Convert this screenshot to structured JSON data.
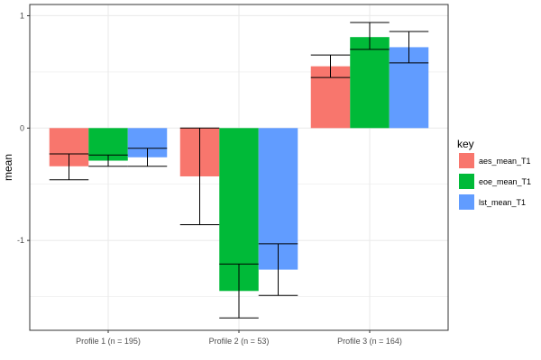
{
  "chart_data": {
    "type": "bar",
    "categories": [
      "Profile 1 (n = 195)",
      "Profile 2 (n = 53)",
      "Profile 3 (n = 164)"
    ],
    "series": [
      {
        "name": "aes_mean_T1",
        "color": "#F8766D",
        "values": [
          -0.34,
          -0.43,
          0.55
        ],
        "err_low": [
          -0.46,
          -0.86,
          0.45
        ],
        "err_high": [
          -0.23,
          0.0,
          0.65
        ]
      },
      {
        "name": "eoe_mean_T1",
        "color": "#00BA38",
        "values": [
          -0.29,
          -1.45,
          0.81
        ],
        "err_low": [
          -0.34,
          -1.69,
          0.7
        ],
        "err_high": [
          -0.24,
          -1.21,
          0.94
        ]
      },
      {
        "name": "lst_mean_T1",
        "color": "#619CFF",
        "values": [
          -0.26,
          -1.26,
          0.72
        ],
        "err_low": [
          -0.34,
          -1.49,
          0.58
        ],
        "err_high": [
          -0.18,
          -1.03,
          0.86
        ]
      }
    ],
    "xlabel": "",
    "ylabel": "mean",
    "ylim": [
      -1.8,
      1.1
    ],
    "yticks": [
      -1,
      0,
      1
    ],
    "ytick_labels": [
      "-1",
      "0",
      "1"
    ],
    "grid": true,
    "legend": {
      "title": "key",
      "position": "right"
    }
  }
}
